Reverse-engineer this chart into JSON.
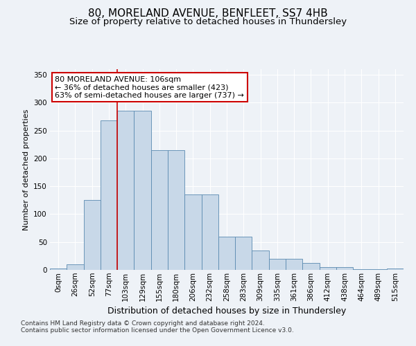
{
  "title1": "80, MORELAND AVENUE, BENFLEET, SS7 4HB",
  "title2": "Size of property relative to detached houses in Thundersley",
  "xlabel": "Distribution of detached houses by size in Thundersley",
  "ylabel": "Number of detached properties",
  "bin_labels": [
    "0sqm",
    "26sqm",
    "52sqm",
    "77sqm",
    "103sqm",
    "129sqm",
    "155sqm",
    "180sqm",
    "206sqm",
    "232sqm",
    "258sqm",
    "283sqm",
    "309sqm",
    "335sqm",
    "361sqm",
    "386sqm",
    "412sqm",
    "438sqm",
    "464sqm",
    "489sqm",
    "515sqm"
  ],
  "bar_heights": [
    2,
    10,
    125,
    268,
    285,
    285,
    215,
    215,
    135,
    135,
    60,
    60,
    35,
    20,
    20,
    12,
    5,
    5,
    1,
    1,
    2
  ],
  "bar_color": "#c8d8e8",
  "bar_edge_color": "#5a8ab0",
  "ref_line_bin": 4,
  "ref_line_color": "#cc0000",
  "annotation_text": "80 MORELAND AVENUE: 106sqm\n← 36% of detached houses are smaller (423)\n63% of semi-detached houses are larger (737) →",
  "annotation_box_color": "#ffffff",
  "annotation_box_edge": "#cc0000",
  "ylim": [
    0,
    360
  ],
  "yticks": [
    0,
    50,
    100,
    150,
    200,
    250,
    300,
    350
  ],
  "footer1": "Contains HM Land Registry data © Crown copyright and database right 2024.",
  "footer2": "Contains public sector information licensed under the Open Government Licence v3.0.",
  "bg_color": "#eef2f7",
  "grid_color": "#ffffff",
  "title1_fontsize": 11,
  "title2_fontsize": 9.5,
  "xlabel_fontsize": 9,
  "ylabel_fontsize": 8,
  "tick_fontsize": 7.5,
  "footer_fontsize": 6.5,
  "ann_fontsize": 8
}
